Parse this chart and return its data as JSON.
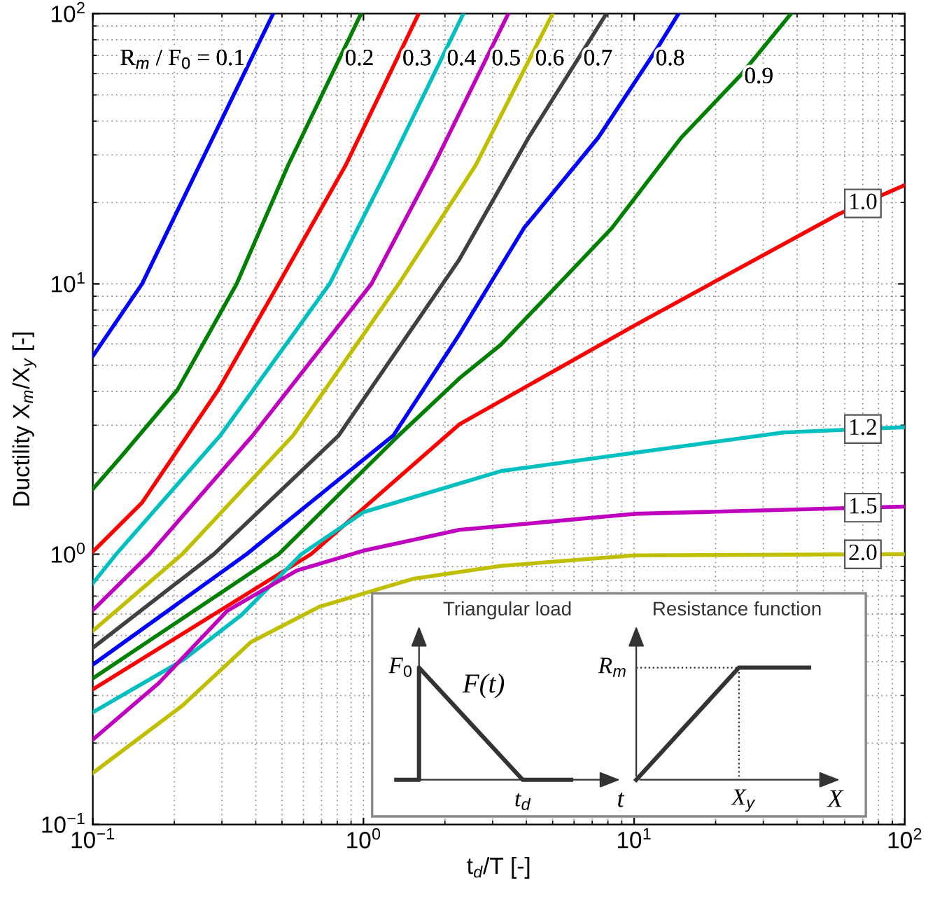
{
  "chart_data": {
    "type": "line",
    "xlabel": "t$_{d}$/T [-]",
    "ylabel": "Ductility X$_{m}$/X$_{y}$ [-]",
    "log": "xy",
    "grid": true,
    "legend": false,
    "xlim": [
      0.1,
      100
    ],
    "ylim": [
      0.1,
      100
    ],
    "xticks": [
      {
        "value": 0.1,
        "label": "10$^{−1}$"
      },
      {
        "value": 1,
        "label": "10$^{0}$"
      },
      {
        "value": 10,
        "label": "10$^{1}$"
      },
      {
        "value": 100,
        "label": "10$^{2}$"
      }
    ],
    "yticks": [
      {
        "value": 0.1,
        "label": "10$^{−1}$"
      },
      {
        "value": 1,
        "label": "10$^{0}$"
      },
      {
        "value": 10,
        "label": "10$^{1}$"
      },
      {
        "value": 100,
        "label": "10$^{2}$"
      }
    ],
    "series": [
      {
        "name": "R$_{m}$ / F$_{0}$ = 0.1",
        "color": "#0000ff",
        "x": [
          0.1,
          0.152,
          0.248,
          0.464
        ],
        "values": [
          5.4,
          10,
          27.5,
          100
        ]
      },
      {
        "name": "0.2",
        "color": "#008000",
        "x": [
          0.1,
          0.126,
          0.205,
          0.34,
          0.527,
          0.98
        ],
        "values": [
          1.74,
          2.27,
          4.04,
          10,
          27.5,
          100
        ]
      },
      {
        "name": "0.3",
        "color": "#ff0000",
        "x": [
          0.1,
          0.152,
          0.29,
          0.486,
          0.86,
          1.6
        ],
        "values": [
          1.02,
          1.55,
          4.04,
          10,
          27.5,
          100
        ]
      },
      {
        "name": "0.4",
        "color": "#00bfbf",
        "x": [
          0.1,
          0.122,
          0.296,
          0.75,
          1.25,
          2.34
        ],
        "values": [
          0.78,
          1.0,
          2.75,
          10,
          27.5,
          100
        ]
      },
      {
        "name": "0.5",
        "color": "#bf00bf",
        "x": [
          0.1,
          0.162,
          0.39,
          1.07,
          1.82,
          3.43
        ],
        "values": [
          0.62,
          1.0,
          2.75,
          10,
          27.5,
          100
        ]
      },
      {
        "name": "0.6",
        "color": "#bfbf00",
        "x": [
          0.1,
          0.214,
          0.55,
          1.35,
          2.6,
          5.0
        ],
        "values": [
          0.52,
          1.0,
          2.75,
          10,
          27.5,
          100
        ]
      },
      {
        "name": "0.7",
        "color": "#404040",
        "x": [
          0.1,
          0.28,
          0.81,
          2.26,
          4.07,
          7.9
        ],
        "values": [
          0.45,
          1.0,
          2.75,
          12.3,
          34.7,
          100
        ]
      },
      {
        "name": "0.8",
        "color": "#0000ff",
        "x": [
          0.1,
          0.37,
          1.29,
          2.26,
          3.92,
          7.36,
          12.2,
          14.6
        ],
        "values": [
          0.39,
          1.0,
          2.75,
          6.5,
          16.1,
          34.7,
          74.7,
          100
        ]
      },
      {
        "name": "0.9",
        "color": "#008000",
        "x": [
          0.1,
          0.486,
          1.35,
          2.26,
          3.22,
          8.28,
          14.9,
          24.8,
          38
        ],
        "values": [
          0.347,
          1.0,
          2.75,
          4.47,
          5.96,
          16.1,
          34.7,
          59.3,
          100
        ]
      },
      {
        "name": "1.0",
        "color": "#ff0000",
        "x": [
          0.1,
          0.64,
          2.26,
          10.2,
          56.8,
          100
        ],
        "values": [
          0.316,
          1.0,
          3.02,
          7.08,
          18.1,
          23.2
        ]
      },
      {
        "name": "1.2",
        "color": "#00bfbf",
        "x": [
          0.1,
          0.214,
          0.354,
          0.59,
          1.0,
          3.22,
          10,
          35.5,
          100
        ],
        "values": [
          0.26,
          0.404,
          0.595,
          1.0,
          1.43,
          2.03,
          2.37,
          2.82,
          2.95
        ]
      },
      {
        "name": "1.5",
        "color": "#bf00bf",
        "x": [
          0.1,
          0.175,
          0.314,
          0.567,
          1.0,
          2.26,
          10,
          100
        ],
        "values": [
          0.206,
          0.333,
          0.617,
          0.87,
          1.03,
          1.23,
          1.41,
          1.5
        ]
      },
      {
        "name": "2.0",
        "color": "#bfbf00",
        "x": [
          0.1,
          0.214,
          0.384,
          0.69,
          1.52,
          3.22,
          10,
          100
        ],
        "values": [
          0.155,
          0.275,
          0.473,
          0.64,
          0.81,
          0.905,
          0.99,
          1.0
        ]
      }
    ],
    "annotations": [
      "Triangular load",
      "Resistance function",
      "F$_{0}$",
      "F(t)",
      "t$_{d}$",
      "t",
      "R$_{m}$",
      "X$_{y}$",
      "X"
    ]
  }
}
